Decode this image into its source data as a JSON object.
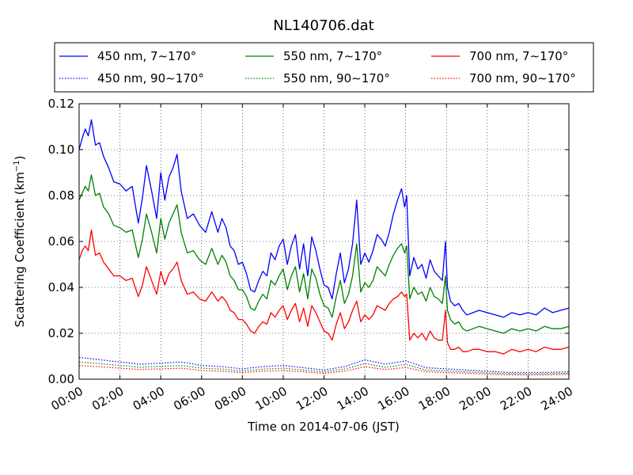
{
  "chart_data": {
    "type": "line",
    "title": "NL140706.dat",
    "xlabel": "Time on 2014-07-06 (JST)",
    "ylabel_main": "Scattering Coefficient (km",
    "ylabel_sup": "−1",
    "ylabel_close": ")",
    "xlim": [
      0,
      24
    ],
    "ylim": [
      0,
      0.12
    ],
    "x_ticks": [
      0,
      2,
      4,
      6,
      8,
      10,
      12,
      14,
      16,
      18,
      20,
      22,
      24
    ],
    "x_tick_labels": [
      "00:00",
      "02:00",
      "04:00",
      "06:00",
      "08:00",
      "10:00",
      "12:00",
      "14:00",
      "16:00",
      "18:00",
      "20:00",
      "22:00",
      "24:00"
    ],
    "y_ticks": [
      0,
      0.02,
      0.04,
      0.06,
      0.08,
      0.1,
      0.12
    ],
    "y_tick_labels": [
      "0.00",
      "0.02",
      "0.04",
      "0.06",
      "0.08",
      "0.10",
      "0.12"
    ],
    "grid": true,
    "legend_position": "above-plot",
    "x_unit": "hours after 00:00 JST",
    "series": [
      {
        "name": "450 nm, 7∼170°",
        "color": "#0000ff",
        "style": "solid",
        "x": [
          0.0,
          0.15,
          0.3,
          0.45,
          0.6,
          0.8,
          1.0,
          1.2,
          1.45,
          1.7,
          2.0,
          2.3,
          2.6,
          2.9,
          3.1,
          3.3,
          3.55,
          3.8,
          4.0,
          4.2,
          4.4,
          4.6,
          4.8,
          5.0,
          5.3,
          5.6,
          5.9,
          6.2,
          6.5,
          6.8,
          7.0,
          7.2,
          7.4,
          7.6,
          7.8,
          8.0,
          8.2,
          8.4,
          8.6,
          8.8,
          9.0,
          9.2,
          9.4,
          9.6,
          9.8,
          10.0,
          10.2,
          10.4,
          10.6,
          10.8,
          11.0,
          11.2,
          11.4,
          11.6,
          11.8,
          12.0,
          12.2,
          12.4,
          12.6,
          12.8,
          13.0,
          13.2,
          13.4,
          13.6,
          13.8,
          14.0,
          14.2,
          14.4,
          14.6,
          14.8,
          15.0,
          15.2,
          15.4,
          15.6,
          15.8,
          15.95,
          16.05,
          16.2,
          16.4,
          16.6,
          16.8,
          17.0,
          17.2,
          17.4,
          17.6,
          17.8,
          17.95,
          18.05,
          18.2,
          18.4,
          18.6,
          18.8,
          19.0,
          19.3,
          19.6,
          20.0,
          20.4,
          20.8,
          21.2,
          21.6,
          22.0,
          22.4,
          22.8,
          23.2,
          23.6,
          24.0
        ],
        "y": [
          0.1,
          0.105,
          0.109,
          0.106,
          0.113,
          0.102,
          0.103,
          0.097,
          0.092,
          0.086,
          0.085,
          0.082,
          0.084,
          0.068,
          0.079,
          0.093,
          0.082,
          0.07,
          0.09,
          0.078,
          0.088,
          0.092,
          0.098,
          0.082,
          0.07,
          0.072,
          0.067,
          0.064,
          0.073,
          0.064,
          0.07,
          0.066,
          0.058,
          0.056,
          0.05,
          0.051,
          0.046,
          0.039,
          0.038,
          0.043,
          0.047,
          0.045,
          0.055,
          0.052,
          0.058,
          0.061,
          0.05,
          0.058,
          0.063,
          0.048,
          0.059,
          0.045,
          0.062,
          0.056,
          0.048,
          0.041,
          0.04,
          0.035,
          0.046,
          0.055,
          0.042,
          0.048,
          0.059,
          0.078,
          0.05,
          0.055,
          0.051,
          0.056,
          0.063,
          0.061,
          0.058,
          0.064,
          0.072,
          0.078,
          0.083,
          0.075,
          0.08,
          0.045,
          0.053,
          0.048,
          0.05,
          0.044,
          0.052,
          0.047,
          0.045,
          0.043,
          0.06,
          0.04,
          0.034,
          0.032,
          0.033,
          0.03,
          0.028,
          0.029,
          0.03,
          0.029,
          0.028,
          0.027,
          0.029,
          0.028,
          0.029,
          0.028,
          0.031,
          0.029,
          0.03,
          0.031
        ]
      },
      {
        "name": "550 nm, 7∼170°",
        "color": "#008000",
        "style": "solid",
        "x": [
          0.0,
          0.15,
          0.3,
          0.45,
          0.6,
          0.8,
          1.0,
          1.2,
          1.45,
          1.7,
          2.0,
          2.3,
          2.6,
          2.9,
          3.1,
          3.3,
          3.55,
          3.8,
          4.0,
          4.2,
          4.4,
          4.6,
          4.8,
          5.0,
          5.3,
          5.6,
          5.9,
          6.2,
          6.5,
          6.8,
          7.0,
          7.2,
          7.4,
          7.6,
          7.8,
          8.0,
          8.2,
          8.4,
          8.6,
          8.8,
          9.0,
          9.2,
          9.4,
          9.6,
          9.8,
          10.0,
          10.2,
          10.4,
          10.6,
          10.8,
          11.0,
          11.2,
          11.4,
          11.6,
          11.8,
          12.0,
          12.2,
          12.4,
          12.6,
          12.8,
          13.0,
          13.2,
          13.4,
          13.6,
          13.8,
          14.0,
          14.2,
          14.4,
          14.6,
          14.8,
          15.0,
          15.2,
          15.4,
          15.6,
          15.8,
          15.95,
          16.05,
          16.2,
          16.4,
          16.6,
          16.8,
          17.0,
          17.2,
          17.4,
          17.6,
          17.8,
          17.95,
          18.05,
          18.2,
          18.4,
          18.6,
          18.8,
          19.0,
          19.3,
          19.6,
          20.0,
          20.4,
          20.8,
          21.2,
          21.6,
          22.0,
          22.4,
          22.8,
          23.2,
          23.6,
          24.0
        ],
        "y": [
          0.078,
          0.081,
          0.084,
          0.082,
          0.089,
          0.08,
          0.081,
          0.075,
          0.072,
          0.067,
          0.066,
          0.064,
          0.065,
          0.053,
          0.061,
          0.072,
          0.064,
          0.055,
          0.07,
          0.061,
          0.068,
          0.072,
          0.076,
          0.064,
          0.055,
          0.056,
          0.052,
          0.05,
          0.057,
          0.05,
          0.054,
          0.051,
          0.045,
          0.043,
          0.039,
          0.039,
          0.036,
          0.031,
          0.03,
          0.034,
          0.037,
          0.035,
          0.043,
          0.041,
          0.045,
          0.048,
          0.039,
          0.045,
          0.049,
          0.038,
          0.046,
          0.035,
          0.048,
          0.044,
          0.037,
          0.032,
          0.031,
          0.027,
          0.036,
          0.043,
          0.033,
          0.037,
          0.045,
          0.059,
          0.038,
          0.042,
          0.04,
          0.043,
          0.049,
          0.047,
          0.045,
          0.05,
          0.054,
          0.057,
          0.059,
          0.055,
          0.058,
          0.035,
          0.04,
          0.037,
          0.038,
          0.034,
          0.04,
          0.036,
          0.035,
          0.033,
          0.045,
          0.03,
          0.026,
          0.024,
          0.025,
          0.022,
          0.021,
          0.022,
          0.023,
          0.022,
          0.021,
          0.02,
          0.022,
          0.021,
          0.022,
          0.021,
          0.023,
          0.022,
          0.022,
          0.023
        ]
      },
      {
        "name": "700 nm, 7∼170°",
        "color": "#ff0000",
        "style": "solid",
        "x": [
          0.0,
          0.15,
          0.3,
          0.45,
          0.6,
          0.8,
          1.0,
          1.2,
          1.45,
          1.7,
          2.0,
          2.3,
          2.6,
          2.9,
          3.1,
          3.3,
          3.55,
          3.8,
          4.0,
          4.2,
          4.4,
          4.6,
          4.8,
          5.0,
          5.3,
          5.6,
          5.9,
          6.2,
          6.5,
          6.8,
          7.0,
          7.2,
          7.4,
          7.6,
          7.8,
          8.0,
          8.2,
          8.4,
          8.6,
          8.8,
          9.0,
          9.2,
          9.4,
          9.6,
          9.8,
          10.0,
          10.2,
          10.4,
          10.6,
          10.8,
          11.0,
          11.2,
          11.4,
          11.6,
          11.8,
          12.0,
          12.2,
          12.4,
          12.6,
          12.8,
          13.0,
          13.2,
          13.4,
          13.6,
          13.8,
          14.0,
          14.2,
          14.4,
          14.6,
          14.8,
          15.0,
          15.2,
          15.4,
          15.6,
          15.8,
          15.95,
          16.05,
          16.2,
          16.4,
          16.6,
          16.8,
          17.0,
          17.2,
          17.4,
          17.6,
          17.8,
          17.95,
          18.05,
          18.2,
          18.4,
          18.6,
          18.8,
          19.0,
          19.3,
          19.6,
          20.0,
          20.4,
          20.8,
          21.2,
          21.6,
          22.0,
          22.4,
          22.8,
          23.2,
          23.6,
          24.0
        ],
        "y": [
          0.052,
          0.056,
          0.058,
          0.056,
          0.065,
          0.054,
          0.055,
          0.051,
          0.048,
          0.045,
          0.045,
          0.043,
          0.044,
          0.036,
          0.041,
          0.049,
          0.043,
          0.037,
          0.047,
          0.041,
          0.046,
          0.048,
          0.051,
          0.043,
          0.037,
          0.038,
          0.035,
          0.034,
          0.038,
          0.034,
          0.036,
          0.034,
          0.03,
          0.029,
          0.026,
          0.026,
          0.024,
          0.021,
          0.02,
          0.023,
          0.025,
          0.024,
          0.029,
          0.027,
          0.03,
          0.032,
          0.026,
          0.03,
          0.033,
          0.025,
          0.031,
          0.023,
          0.032,
          0.029,
          0.025,
          0.021,
          0.02,
          0.017,
          0.024,
          0.029,
          0.022,
          0.025,
          0.03,
          0.034,
          0.025,
          0.028,
          0.026,
          0.028,
          0.032,
          0.031,
          0.03,
          0.033,
          0.035,
          0.036,
          0.038,
          0.036,
          0.037,
          0.017,
          0.02,
          0.018,
          0.02,
          0.017,
          0.021,
          0.018,
          0.017,
          0.017,
          0.03,
          0.016,
          0.013,
          0.013,
          0.014,
          0.012,
          0.012,
          0.013,
          0.013,
          0.012,
          0.012,
          0.011,
          0.013,
          0.012,
          0.013,
          0.012,
          0.014,
          0.013,
          0.013,
          0.014
        ]
      },
      {
        "name": "450 nm, 90∼170°",
        "color": "#0000ff",
        "style": "dotted",
        "x": [
          0,
          1,
          2,
          3,
          4,
          5,
          6,
          7,
          8,
          9,
          10,
          11,
          12,
          13,
          14,
          15,
          16,
          17,
          18,
          19,
          20,
          21,
          22,
          23,
          24
        ],
        "y": [
          0.0095,
          0.0085,
          0.0075,
          0.0065,
          0.007,
          0.0075,
          0.006,
          0.0055,
          0.0045,
          0.0055,
          0.006,
          0.005,
          0.004,
          0.0055,
          0.0085,
          0.0065,
          0.008,
          0.005,
          0.0045,
          0.004,
          0.0035,
          0.003,
          0.003,
          0.003,
          0.0032
        ]
      },
      {
        "name": "550 nm, 90∼170°",
        "color": "#008000",
        "style": "dotted",
        "x": [
          0,
          1,
          2,
          3,
          4,
          5,
          6,
          7,
          8,
          9,
          10,
          11,
          12,
          13,
          14,
          15,
          16,
          17,
          18,
          19,
          20,
          21,
          22,
          23,
          24
        ],
        "y": [
          0.0075,
          0.0068,
          0.006,
          0.0052,
          0.0056,
          0.006,
          0.0048,
          0.0044,
          0.0036,
          0.0044,
          0.0048,
          0.004,
          0.0032,
          0.0044,
          0.0068,
          0.0052,
          0.0064,
          0.004,
          0.0036,
          0.0032,
          0.0028,
          0.0024,
          0.0024,
          0.0024,
          0.0026
        ]
      },
      {
        "name": "700 nm, 90∼170°",
        "color": "#ff0000",
        "style": "dotted",
        "x": [
          0,
          1,
          2,
          3,
          4,
          5,
          6,
          7,
          8,
          9,
          10,
          11,
          12,
          13,
          14,
          15,
          16,
          17,
          18,
          19,
          20,
          21,
          22,
          23,
          24
        ],
        "y": [
          0.006,
          0.0054,
          0.0048,
          0.0042,
          0.0045,
          0.0048,
          0.0038,
          0.0035,
          0.0029,
          0.0035,
          0.0038,
          0.0032,
          0.0026,
          0.0035,
          0.0054,
          0.0042,
          0.0051,
          0.0032,
          0.0029,
          0.0026,
          0.0022,
          0.0019,
          0.0019,
          0.0019,
          0.0021
        ]
      }
    ]
  }
}
